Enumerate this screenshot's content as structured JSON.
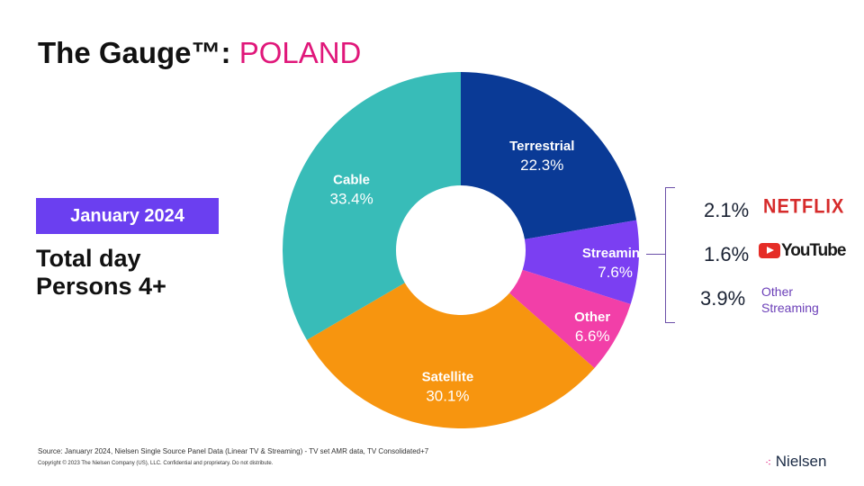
{
  "title": {
    "prefix": "The Gauge™: ",
    "country": "POLAND"
  },
  "period": "January 2024",
  "subtitle": {
    "line1": "Total day",
    "line2": "Persons 4+"
  },
  "chart_data": {
    "type": "pie",
    "donut": true,
    "categories": [
      "Terrestrial",
      "Streaming",
      "Other",
      "Satellite",
      "Cable"
    ],
    "values": [
      22.3,
      7.6,
      6.6,
      30.1,
      33.4
    ],
    "labels": [
      "22.3%",
      "7.6%",
      "6.6%",
      "30.1%",
      "33.4%"
    ],
    "colors": [
      "#0a3a96",
      "#7b3ff2",
      "#f23fa8",
      "#f7950f",
      "#38bcb8"
    ],
    "streaming_breakdown": [
      {
        "name": "NETFLIX",
        "value": "2.1%",
        "color": "#d62b2b"
      },
      {
        "name": "YouTube",
        "value": "1.6%",
        "color": "#1a1a1a"
      },
      {
        "name": "Other Streaming",
        "value": "3.9%",
        "color": "#6b3fb8"
      }
    ]
  },
  "footer": {
    "source": "Source: Januaryr  2024, Nielsen Single Source Panel Data (Linear TV & Streaming) - TV set AMR data, TV Consolidated+7",
    "copyright": "Copyright © 2023 The Nielsen Company (US), LLC. Confidential and proprietary. Do not distribute.",
    "logo": "Nielsen"
  }
}
